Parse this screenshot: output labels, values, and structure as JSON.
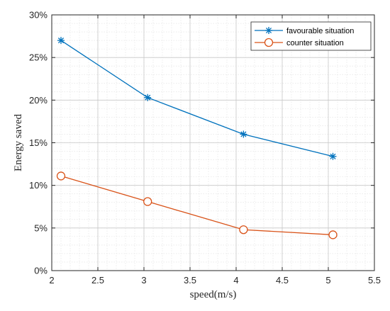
{
  "chart_data": {
    "type": "line",
    "title": "",
    "xlabel": "speed(m/s)",
    "ylabel": "Energy saved",
    "xlim": [
      2,
      5.5
    ],
    "ylim": [
      0,
      30
    ],
    "x_ticks": [
      2,
      2.5,
      3,
      3.5,
      4,
      4.5,
      5,
      5.5
    ],
    "x_tick_labels": [
      "2",
      "2.5",
      "3",
      "3.5",
      "4",
      "4.5",
      "5",
      "5.5"
    ],
    "y_ticks": [
      0,
      5,
      10,
      15,
      20,
      25,
      30
    ],
    "y_tick_labels": [
      "0%",
      "5%",
      "10%",
      "15%",
      "20%",
      "25%",
      "30%"
    ],
    "grid": "on (major and minor)",
    "legend_position": "top-right",
    "series": [
      {
        "name": "favourable situation",
        "color": "#0072BD",
        "marker": "asterisk",
        "x": [
          2.1,
          3.04,
          4.08,
          5.05
        ],
        "y": [
          27.0,
          20.3,
          16.0,
          13.4
        ]
      },
      {
        "name": "counter situation",
        "color": "#D95319",
        "marker": "circle",
        "x": [
          2.1,
          3.04,
          4.08,
          5.05
        ],
        "y": [
          11.1,
          8.1,
          4.8,
          4.2
        ]
      }
    ]
  }
}
